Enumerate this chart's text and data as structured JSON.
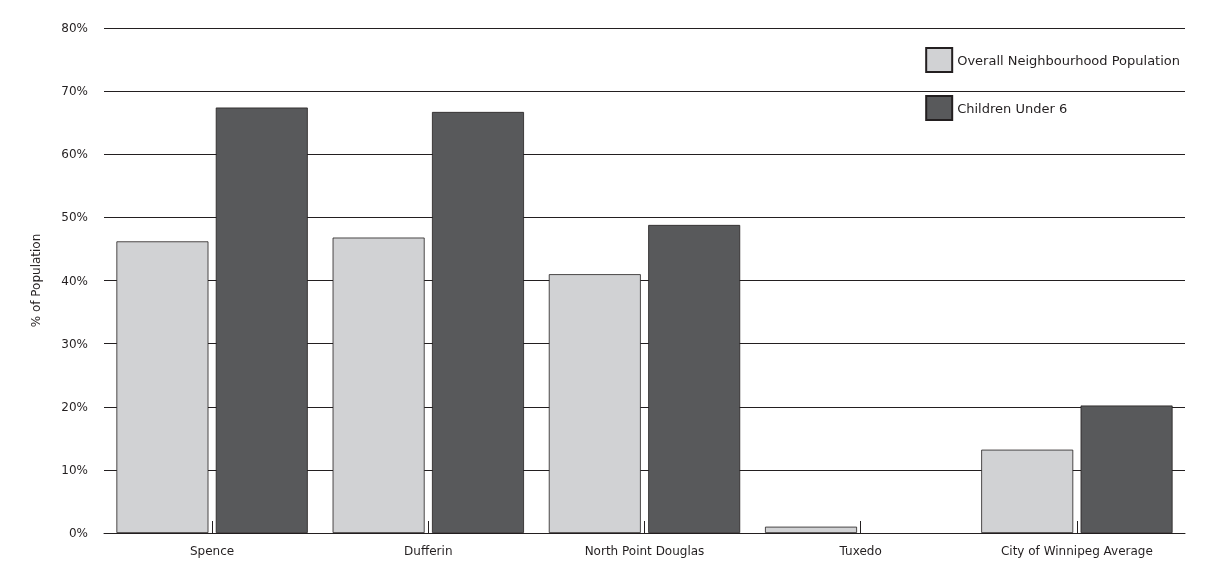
{
  "chart_data": {
    "type": "bar",
    "ylabel": "% of Population",
    "categories": [
      "Spence",
      "Dufferin",
      "North Point Douglas",
      "Tuxedo",
      "City of Winnipeg Average"
    ],
    "series": [
      {
        "name": "Overall Neighbourhood Population",
        "color": "#d1d2d4",
        "values": [
          46.2,
          46.8,
          41.0,
          1.0,
          13.2
        ]
      },
      {
        "name": "Children Under 6",
        "color": "#58595b",
        "values": [
          67.4,
          66.7,
          48.8,
          null,
          20.2
        ]
      }
    ],
    "ylim": [
      0,
      80
    ],
    "yticks": [
      {
        "value": 0,
        "label": "0%"
      },
      {
        "value": 10,
        "label": "10%"
      },
      {
        "value": 20,
        "label": "20%"
      },
      {
        "value": 30,
        "label": "30%"
      },
      {
        "value": 40,
        "label": "40%"
      },
      {
        "value": 50,
        "label": "50%"
      },
      {
        "value": 60,
        "label": "60%"
      },
      {
        "value": 70,
        "label": "70%"
      },
      {
        "value": 80,
        "label": "80%"
      }
    ],
    "grid": "y",
    "legend": "top right"
  }
}
